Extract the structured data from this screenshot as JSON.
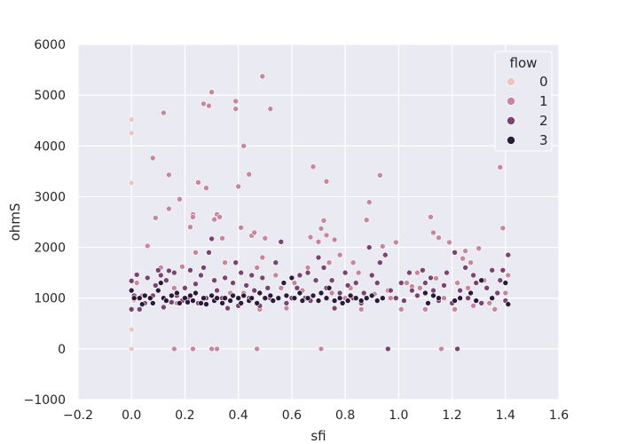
{
  "chart_data": {
    "type": "scatter",
    "title": "",
    "xlabel": "sfi",
    "ylabel": "ohmS",
    "xlim": [
      -0.2,
      1.6
    ],
    "ylim": [
      -1000,
      6000
    ],
    "xticks": [
      "−0.2",
      "0.0",
      "0.2",
      "0.4",
      "0.6",
      "0.8",
      "1.0",
      "1.2",
      "1.4",
      "1.6"
    ],
    "yticks": [
      "−1000",
      "0",
      "1000",
      "2000",
      "3000",
      "4000",
      "5000",
      "6000"
    ],
    "grid": true,
    "legend": {
      "title": "flow",
      "placement": "top-right"
    },
    "series": [
      {
        "name": "0",
        "color": "#ecc6be",
        "points": [
          [
            0.0,
            4520
          ],
          [
            0.0,
            4250
          ],
          [
            0.0,
            3270
          ],
          [
            0.0,
            380
          ],
          [
            0.0,
            0
          ],
          [
            0.0,
            1150
          ],
          [
            0.01,
            950
          ]
        ]
      },
      {
        "name": "1",
        "color": "#c9859a",
        "points": [
          [
            0.02,
            1300
          ],
          [
            0.04,
            1050
          ],
          [
            0.06,
            2030
          ],
          [
            0.08,
            3760
          ],
          [
            0.09,
            2580
          ],
          [
            0.11,
            1600
          ],
          [
            0.12,
            4650
          ],
          [
            0.14,
            2760
          ],
          [
            0.14,
            3430
          ],
          [
            0.16,
            1200
          ],
          [
            0.17,
            900
          ],
          [
            0.18,
            2950
          ],
          [
            0.19,
            1620
          ],
          [
            0.2,
            1200
          ],
          [
            0.22,
            2400
          ],
          [
            0.23,
            2650
          ],
          [
            0.23,
            2600
          ],
          [
            0.24,
            1900
          ],
          [
            0.25,
            3280
          ],
          [
            0.27,
            4830
          ],
          [
            0.28,
            3170
          ],
          [
            0.29,
            4790
          ],
          [
            0.3,
            5060
          ],
          [
            0.31,
            2550
          ],
          [
            0.32,
            2650
          ],
          [
            0.33,
            2600
          ],
          [
            0.34,
            2180
          ],
          [
            0.35,
            1700
          ],
          [
            0.37,
            1100
          ],
          [
            0.39,
            4880
          ],
          [
            0.39,
            4730
          ],
          [
            0.4,
            3200
          ],
          [
            0.41,
            2390
          ],
          [
            0.42,
            4000
          ],
          [
            0.42,
            1100
          ],
          [
            0.44,
            3440
          ],
          [
            0.45,
            2230
          ],
          [
            0.46,
            2290
          ],
          [
            0.47,
            1600
          ],
          [
            0.48,
            780
          ],
          [
            0.49,
            5370
          ],
          [
            0.49,
            1800
          ],
          [
            0.5,
            2180
          ],
          [
            0.52,
            4730
          ],
          [
            0.54,
            1450
          ],
          [
            0.56,
            1200
          ],
          [
            0.58,
            800
          ],
          [
            0.61,
            1300
          ],
          [
            0.64,
            1150
          ],
          [
            0.66,
            1600
          ],
          [
            0.67,
            2200
          ],
          [
            0.68,
            3590
          ],
          [
            0.7,
            2110
          ],
          [
            0.71,
            2370
          ],
          [
            0.72,
            2530
          ],
          [
            0.73,
            3300
          ],
          [
            0.73,
            2240
          ],
          [
            0.74,
            1700
          ],
          [
            0.75,
            1100
          ],
          [
            0.76,
            2150
          ],
          [
            0.78,
            1850
          ],
          [
            0.8,
            1000
          ],
          [
            0.82,
            1200
          ],
          [
            0.83,
            1700
          ],
          [
            0.85,
            1500
          ],
          [
            0.86,
            780
          ],
          [
            0.88,
            2540
          ],
          [
            0.89,
            2890
          ],
          [
            0.91,
            1080
          ],
          [
            0.93,
            3420
          ],
          [
            0.94,
            2020
          ],
          [
            0.96,
            1150
          ],
          [
            0.97,
            1000
          ],
          [
            0.99,
            2100
          ],
          [
            1.01,
            780
          ],
          [
            1.03,
            1300
          ],
          [
            1.05,
            1230
          ],
          [
            1.07,
            1500
          ],
          [
            1.08,
            1200
          ],
          [
            1.1,
            780
          ],
          [
            1.12,
            2600
          ],
          [
            1.13,
            2290
          ],
          [
            1.14,
            1390
          ],
          [
            1.15,
            2190
          ],
          [
            1.16,
            0
          ],
          [
            1.17,
            1000
          ],
          [
            1.19,
            2100
          ],
          [
            1.21,
            780
          ],
          [
            1.22,
            1300
          ],
          [
            1.24,
            1780
          ],
          [
            1.25,
            1930
          ],
          [
            1.26,
            1200
          ],
          [
            1.27,
            1700
          ],
          [
            1.28,
            850
          ],
          [
            1.3,
            1980
          ],
          [
            1.32,
            1350
          ],
          [
            1.34,
            900
          ],
          [
            1.36,
            780
          ],
          [
            1.38,
            3580
          ],
          [
            1.39,
            2380
          ],
          [
            1.4,
            1100
          ],
          [
            1.41,
            1450
          ],
          [
            0.16,
            0
          ],
          [
            0.23,
            0
          ],
          [
            0.3,
            0
          ],
          [
            0.32,
            0
          ],
          [
            0.47,
            0
          ],
          [
            0.71,
            0
          ]
        ]
      },
      {
        "name": "2",
        "color": "#7a4370",
        "points": [
          [
            0.0,
            1340
          ],
          [
            0.0,
            780
          ],
          [
            0.01,
            1050
          ],
          [
            0.02,
            1460
          ],
          [
            0.03,
            780
          ],
          [
            0.05,
            900
          ],
          [
            0.06,
            1400
          ],
          [
            0.08,
            1050
          ],
          [
            0.09,
            1250
          ],
          [
            0.1,
            1550
          ],
          [
            0.11,
            1450
          ],
          [
            0.12,
            820
          ],
          [
            0.13,
            1350
          ],
          [
            0.14,
            1540
          ],
          [
            0.15,
            920
          ],
          [
            0.16,
            1500
          ],
          [
            0.17,
            1050
          ],
          [
            0.19,
            950
          ],
          [
            0.2,
            1200
          ],
          [
            0.21,
            1000
          ],
          [
            0.22,
            1550
          ],
          [
            0.24,
            1280
          ],
          [
            0.25,
            900
          ],
          [
            0.26,
            1450
          ],
          [
            0.27,
            1600
          ],
          [
            0.28,
            1000
          ],
          [
            0.29,
            1900
          ],
          [
            0.3,
            2170
          ],
          [
            0.31,
            1350
          ],
          [
            0.32,
            1150
          ],
          [
            0.34,
            1000
          ],
          [
            0.35,
            1400
          ],
          [
            0.36,
            800
          ],
          [
            0.38,
            1300
          ],
          [
            0.39,
            1700
          ],
          [
            0.4,
            850
          ],
          [
            0.41,
            1500
          ],
          [
            0.43,
            1250
          ],
          [
            0.44,
            1000
          ],
          [
            0.45,
            1450
          ],
          [
            0.46,
            1150
          ],
          [
            0.48,
            850
          ],
          [
            0.49,
            1400
          ],
          [
            0.51,
            1200
          ],
          [
            0.52,
            1000
          ],
          [
            0.54,
            1700
          ],
          [
            0.56,
            2110
          ],
          [
            0.57,
            1300
          ],
          [
            0.58,
            900
          ],
          [
            0.6,
            1000
          ],
          [
            0.62,
            1200
          ],
          [
            0.63,
            1450
          ],
          [
            0.65,
            1000
          ],
          [
            0.66,
            1500
          ],
          [
            0.67,
            950
          ],
          [
            0.69,
            1350
          ],
          [
            0.7,
            1800
          ],
          [
            0.72,
            1600
          ],
          [
            0.73,
            1200
          ],
          [
            0.75,
            1350
          ],
          [
            0.76,
            800
          ],
          [
            0.78,
            1100
          ],
          [
            0.8,
            1500
          ],
          [
            0.81,
            1250
          ],
          [
            0.83,
            1000
          ],
          [
            0.84,
            1300
          ],
          [
            0.86,
            900
          ],
          [
            0.87,
            1100
          ],
          [
            0.89,
            2000
          ],
          [
            0.9,
            1450
          ],
          [
            0.92,
            1300
          ],
          [
            0.93,
            1700
          ],
          [
            0.95,
            1850
          ],
          [
            0.96,
            0
          ],
          [
            0.97,
            1150
          ],
          [
            0.99,
            1000
          ],
          [
            1.01,
            1300
          ],
          [
            1.02,
            950
          ],
          [
            1.04,
            1500
          ],
          [
            1.05,
            1150
          ],
          [
            1.07,
            1050
          ],
          [
            1.09,
            1550
          ],
          [
            1.1,
            1300
          ],
          [
            1.12,
            1400
          ],
          [
            1.13,
            1150
          ],
          [
            1.15,
            950
          ],
          [
            1.17,
            1250
          ],
          [
            1.18,
            1500
          ],
          [
            1.2,
            900
          ],
          [
            1.21,
            1900
          ],
          [
            1.22,
            0
          ],
          [
            1.23,
            1150
          ],
          [
            1.25,
            1600
          ],
          [
            1.26,
            1000
          ],
          [
            1.28,
            1450
          ],
          [
            1.29,
            1300
          ],
          [
            1.31,
            900
          ],
          [
            1.33,
            1200
          ],
          [
            1.35,
            1550
          ],
          [
            1.37,
            1100
          ],
          [
            1.38,
            1350
          ],
          [
            1.39,
            1550
          ],
          [
            1.4,
            950
          ],
          [
            1.41,
            1850
          ]
        ]
      },
      {
        "name": "3",
        "color": "#2b1a3b",
        "points": [
          [
            0.0,
            1150
          ],
          [
            0.01,
            1000
          ],
          [
            0.03,
            1000
          ],
          [
            0.04,
            880
          ],
          [
            0.05,
            1050
          ],
          [
            0.07,
            1000
          ],
          [
            0.08,
            900
          ],
          [
            0.1,
            1150
          ],
          [
            0.11,
            1300
          ],
          [
            0.12,
            1000
          ],
          [
            0.13,
            950
          ],
          [
            0.15,
            1050
          ],
          [
            0.17,
            1100
          ],
          [
            0.18,
            900
          ],
          [
            0.2,
            1000
          ],
          [
            0.21,
            920
          ],
          [
            0.22,
            1050
          ],
          [
            0.23,
            950
          ],
          [
            0.24,
            1100
          ],
          [
            0.26,
            900
          ],
          [
            0.27,
            1000
          ],
          [
            0.28,
            880
          ],
          [
            0.3,
            1050
          ],
          [
            0.31,
            950
          ],
          [
            0.32,
            1000
          ],
          [
            0.34,
            900
          ],
          [
            0.35,
            1000
          ],
          [
            0.37,
            950
          ],
          [
            0.38,
            1050
          ],
          [
            0.4,
            1000
          ],
          [
            0.41,
            900
          ],
          [
            0.42,
            1050
          ],
          [
            0.44,
            950
          ],
          [
            0.45,
            1000
          ],
          [
            0.47,
            900
          ],
          [
            0.48,
            1100
          ],
          [
            0.5,
            1000
          ],
          [
            0.52,
            1050
          ],
          [
            0.53,
            950
          ],
          [
            0.55,
            1000
          ],
          [
            0.57,
            1300
          ],
          [
            0.58,
            1050
          ],
          [
            0.6,
            1400
          ],
          [
            0.61,
            1000
          ],
          [
            0.63,
            1100
          ],
          [
            0.64,
            950
          ],
          [
            0.66,
            1000
          ],
          [
            0.68,
            1050
          ],
          [
            0.7,
            950
          ],
          [
            0.71,
            1100
          ],
          [
            0.73,
            1000
          ],
          [
            0.74,
            1200
          ],
          [
            0.76,
            950
          ],
          [
            0.78,
            1000
          ],
          [
            0.79,
            900
          ],
          [
            0.81,
            950
          ],
          [
            0.82,
            1050
          ],
          [
            0.84,
            1000
          ],
          [
            0.86,
            950
          ],
          [
            0.88,
            1000
          ],
          [
            0.9,
            1050
          ],
          [
            0.92,
            950
          ],
          [
            0.94,
            1000
          ],
          [
            1.1,
            1100
          ],
          [
            1.11,
            900
          ],
          [
            1.13,
            1050
          ],
          [
            1.15,
            1000
          ],
          [
            1.21,
            950
          ],
          [
            1.23,
            1000
          ],
          [
            1.27,
            1100
          ],
          [
            1.29,
            950
          ],
          [
            1.31,
            1350
          ],
          [
            1.35,
            1000
          ],
          [
            1.4,
            1300
          ],
          [
            1.41,
            880
          ]
        ]
      }
    ]
  }
}
